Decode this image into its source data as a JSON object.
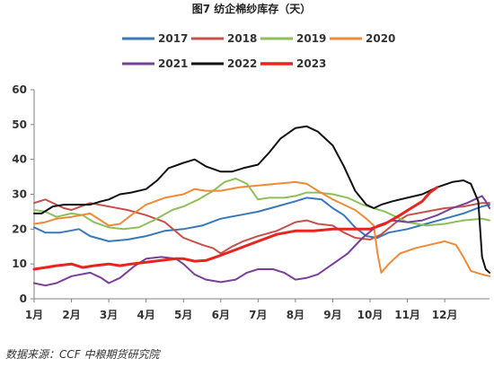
{
  "chart_data": {
    "type": "line",
    "title": "图7 纺企棉纱库存（天）",
    "xlabel": "",
    "ylabel": "",
    "ylim": [
      0,
      60
    ],
    "yticks": [
      0,
      10,
      20,
      30,
      40,
      50,
      60
    ],
    "xlim": [
      1,
      13.2
    ],
    "xticks": [
      1,
      2,
      3,
      4,
      5,
      6,
      7,
      8,
      9,
      10,
      11,
      12
    ],
    "xtick_labels": [
      "1月",
      "2月",
      "3月",
      "4月",
      "5月",
      "6月",
      "7月",
      "8月",
      "9月",
      "10月",
      "11月",
      "12月"
    ],
    "grid": false,
    "legend_position": "top",
    "series": [
      {
        "name": "2017",
        "color": "#3a78b8",
        "points": [
          [
            1.0,
            20.5
          ],
          [
            1.3,
            19.0
          ],
          [
            1.7,
            19.0
          ],
          [
            2.2,
            20.0
          ],
          [
            2.5,
            18.0
          ],
          [
            3.0,
            16.5
          ],
          [
            3.5,
            17.0
          ],
          [
            4.0,
            18.0
          ],
          [
            4.5,
            19.5
          ],
          [
            5.0,
            20.0
          ],
          [
            5.5,
            21.0
          ],
          [
            6.0,
            23.0
          ],
          [
            6.5,
            24.0
          ],
          [
            7.0,
            25.0
          ],
          [
            7.5,
            26.5
          ],
          [
            8.0,
            28.0
          ],
          [
            8.3,
            29.0
          ],
          [
            8.7,
            28.5
          ],
          [
            9.0,
            26.0
          ],
          [
            9.3,
            24.0
          ],
          [
            9.6,
            20.5
          ],
          [
            9.9,
            18.0
          ],
          [
            10.2,
            17.5
          ],
          [
            10.5,
            19.0
          ],
          [
            11.0,
            20.0
          ],
          [
            11.5,
            21.5
          ],
          [
            12.0,
            23.0
          ],
          [
            12.5,
            24.5
          ],
          [
            13.0,
            26.5
          ],
          [
            13.2,
            27.0
          ]
        ]
      },
      {
        "name": "2018",
        "color": "#c8504a",
        "points": [
          [
            1.0,
            27.5
          ],
          [
            1.3,
            28.5
          ],
          [
            1.6,
            27.0
          ],
          [
            1.8,
            26.0
          ],
          [
            2.0,
            25.5
          ],
          [
            2.5,
            27.5
          ],
          [
            3.0,
            26.5
          ],
          [
            3.5,
            25.5
          ],
          [
            4.0,
            24.0
          ],
          [
            4.5,
            22.0
          ],
          [
            5.0,
            17.5
          ],
          [
            5.5,
            15.5
          ],
          [
            5.8,
            14.5
          ],
          [
            6.0,
            13.0
          ],
          [
            6.3,
            15.0
          ],
          [
            6.6,
            16.5
          ],
          [
            7.0,
            18.0
          ],
          [
            7.5,
            19.5
          ],
          [
            8.0,
            22.0
          ],
          [
            8.3,
            22.5
          ],
          [
            8.6,
            21.5
          ],
          [
            9.0,
            21.0
          ],
          [
            9.3,
            19.0
          ],
          [
            9.6,
            17.5
          ],
          [
            10.0,
            17.0
          ],
          [
            10.3,
            18.5
          ],
          [
            10.7,
            22.0
          ],
          [
            11.0,
            24.0
          ],
          [
            11.5,
            25.0
          ],
          [
            12.0,
            26.0
          ],
          [
            12.5,
            26.5
          ],
          [
            13.0,
            27.5
          ],
          [
            13.2,
            27.5
          ]
        ]
      },
      {
        "name": "2019",
        "color": "#8dbf5a",
        "points": [
          [
            1.0,
            25.5
          ],
          [
            1.3,
            25.0
          ],
          [
            1.6,
            23.5
          ],
          [
            2.0,
            24.5
          ],
          [
            2.3,
            24.0
          ],
          [
            2.6,
            22.0
          ],
          [
            3.0,
            20.5
          ],
          [
            3.4,
            20.0
          ],
          [
            3.8,
            20.5
          ],
          [
            4.2,
            22.5
          ],
          [
            4.7,
            25.5
          ],
          [
            5.0,
            26.5
          ],
          [
            5.4,
            28.5
          ],
          [
            5.8,
            31.0
          ],
          [
            6.1,
            33.5
          ],
          [
            6.4,
            34.5
          ],
          [
            6.7,
            33.0
          ],
          [
            7.0,
            28.5
          ],
          [
            7.3,
            29.0
          ],
          [
            7.7,
            29.0
          ],
          [
            8.0,
            29.5
          ],
          [
            8.3,
            30.5
          ],
          [
            8.6,
            30.5
          ],
          [
            9.0,
            30.0
          ],
          [
            9.4,
            29.0
          ],
          [
            9.8,
            27.0
          ],
          [
            10.1,
            26.0
          ],
          [
            10.4,
            25.0
          ],
          [
            10.7,
            23.5
          ],
          [
            11.0,
            22.0
          ],
          [
            11.5,
            21.0
          ],
          [
            12.0,
            21.5
          ],
          [
            12.5,
            22.5
          ],
          [
            13.0,
            23.0
          ],
          [
            13.2,
            22.5
          ]
        ]
      },
      {
        "name": "2020",
        "color": "#ee8a38",
        "points": [
          [
            1.0,
            21.5
          ],
          [
            1.3,
            22.0
          ],
          [
            1.6,
            23.0
          ],
          [
            2.0,
            23.5
          ],
          [
            2.5,
            24.5
          ],
          [
            3.0,
            21.0
          ],
          [
            3.3,
            21.5
          ],
          [
            3.6,
            24.0
          ],
          [
            4.0,
            27.0
          ],
          [
            4.5,
            29.0
          ],
          [
            5.0,
            30.0
          ],
          [
            5.3,
            31.5
          ],
          [
            5.6,
            31.0
          ],
          [
            6.0,
            31.0
          ],
          [
            6.5,
            32.0
          ],
          [
            7.0,
            32.5
          ],
          [
            7.5,
            33.0
          ],
          [
            8.0,
            33.5
          ],
          [
            8.3,
            33.0
          ],
          [
            8.6,
            31.0
          ],
          [
            9.0,
            28.5
          ],
          [
            9.3,
            27.0
          ],
          [
            9.6,
            25.5
          ],
          [
            9.9,
            23.0
          ],
          [
            10.1,
            21.0
          ],
          [
            10.2,
            13.0
          ],
          [
            10.3,
            7.5
          ],
          [
            10.5,
            10.0
          ],
          [
            10.8,
            13.0
          ],
          [
            11.2,
            14.5
          ],
          [
            11.6,
            15.5
          ],
          [
            12.0,
            16.5
          ],
          [
            12.3,
            15.5
          ],
          [
            12.5,
            12.0
          ],
          [
            12.7,
            8.0
          ],
          [
            13.0,
            7.0
          ],
          [
            13.2,
            6.5
          ]
        ]
      },
      {
        "name": "2021",
        "color": "#7a3f9a",
        "points": [
          [
            1.0,
            4.5
          ],
          [
            1.3,
            3.8
          ],
          [
            1.6,
            4.5
          ],
          [
            2.0,
            6.5
          ],
          [
            2.5,
            7.5
          ],
          [
            2.8,
            6.0
          ],
          [
            3.0,
            4.5
          ],
          [
            3.3,
            6.0
          ],
          [
            3.7,
            9.5
          ],
          [
            4.0,
            11.5
          ],
          [
            4.4,
            12.0
          ],
          [
            4.8,
            11.5
          ],
          [
            5.0,
            10.0
          ],
          [
            5.3,
            7.0
          ],
          [
            5.6,
            5.5
          ],
          [
            6.0,
            4.8
          ],
          [
            6.4,
            5.5
          ],
          [
            6.7,
            7.5
          ],
          [
            7.0,
            8.5
          ],
          [
            7.4,
            8.5
          ],
          [
            7.7,
            7.5
          ],
          [
            8.0,
            5.5
          ],
          [
            8.3,
            6.0
          ],
          [
            8.6,
            7.0
          ],
          [
            9.0,
            10.0
          ],
          [
            9.4,
            13.0
          ],
          [
            9.8,
            17.5
          ],
          [
            10.2,
            21.0
          ],
          [
            10.6,
            22.5
          ],
          [
            11.0,
            22.0
          ],
          [
            11.4,
            22.5
          ],
          [
            11.8,
            24.0
          ],
          [
            12.2,
            26.0
          ],
          [
            12.6,
            27.5
          ],
          [
            13.0,
            29.5
          ],
          [
            13.1,
            28.0
          ],
          [
            13.2,
            26.0
          ]
        ]
      },
      {
        "name": "2022",
        "color": "#111111",
        "points": [
          [
            1.0,
            24.5
          ],
          [
            1.2,
            24.5
          ],
          [
            1.5,
            26.5
          ],
          [
            1.8,
            27.0
          ],
          [
            2.2,
            27.0
          ],
          [
            2.5,
            27.0
          ],
          [
            2.8,
            28.0
          ],
          [
            3.0,
            28.5
          ],
          [
            3.3,
            30.0
          ],
          [
            3.6,
            30.5
          ],
          [
            4.0,
            31.5
          ],
          [
            4.3,
            34.0
          ],
          [
            4.6,
            37.5
          ],
          [
            5.0,
            39.0
          ],
          [
            5.3,
            40.0
          ],
          [
            5.6,
            38.0
          ],
          [
            6.0,
            36.5
          ],
          [
            6.3,
            36.5
          ],
          [
            6.6,
            37.5
          ],
          [
            7.0,
            38.5
          ],
          [
            7.3,
            42.0
          ],
          [
            7.6,
            46.0
          ],
          [
            8.0,
            49.0
          ],
          [
            8.3,
            49.5
          ],
          [
            8.6,
            48.0
          ],
          [
            9.0,
            44.0
          ],
          [
            9.3,
            38.0
          ],
          [
            9.6,
            31.0
          ],
          [
            9.9,
            27.0
          ],
          [
            10.1,
            26.0
          ],
          [
            10.3,
            27.0
          ],
          [
            10.6,
            28.0
          ],
          [
            11.0,
            29.0
          ],
          [
            11.4,
            30.0
          ],
          [
            11.8,
            32.0
          ],
          [
            12.2,
            33.5
          ],
          [
            12.5,
            34.0
          ],
          [
            12.7,
            33.0
          ],
          [
            12.9,
            28.0
          ],
          [
            13.0,
            12.0
          ],
          [
            13.1,
            8.5
          ],
          [
            13.2,
            7.5
          ]
        ]
      },
      {
        "name": "2023",
        "color": "#e8241e",
        "points": [
          [
            1.0,
            8.5
          ],
          [
            1.3,
            9.0
          ],
          [
            1.6,
            9.5
          ],
          [
            2.0,
            10.0
          ],
          [
            2.3,
            9.0
          ],
          [
            2.6,
            9.5
          ],
          [
            3.0,
            10.0
          ],
          [
            3.3,
            9.5
          ],
          [
            3.6,
            10.0
          ],
          [
            4.0,
            10.5
          ],
          [
            4.4,
            11.0
          ],
          [
            4.8,
            11.5
          ],
          [
            5.0,
            11.5
          ],
          [
            5.3,
            10.8
          ],
          [
            5.6,
            11.0
          ],
          [
            6.0,
            12.5
          ],
          [
            6.5,
            14.5
          ],
          [
            7.0,
            16.5
          ],
          [
            7.5,
            18.5
          ],
          [
            8.0,
            19.5
          ],
          [
            8.5,
            19.5
          ],
          [
            9.0,
            20.0
          ],
          [
            9.5,
            20.0
          ],
          [
            10.0,
            20.0
          ],
          [
            10.4,
            21.5
          ],
          [
            10.8,
            24.0
          ],
          [
            11.1,
            26.0
          ],
          [
            11.4,
            28.0
          ],
          [
            11.6,
            30.5
          ],
          [
            11.8,
            32.0
          ]
        ]
      }
    ]
  },
  "source_note": "数据来源：CCF  中粮期货研究院"
}
